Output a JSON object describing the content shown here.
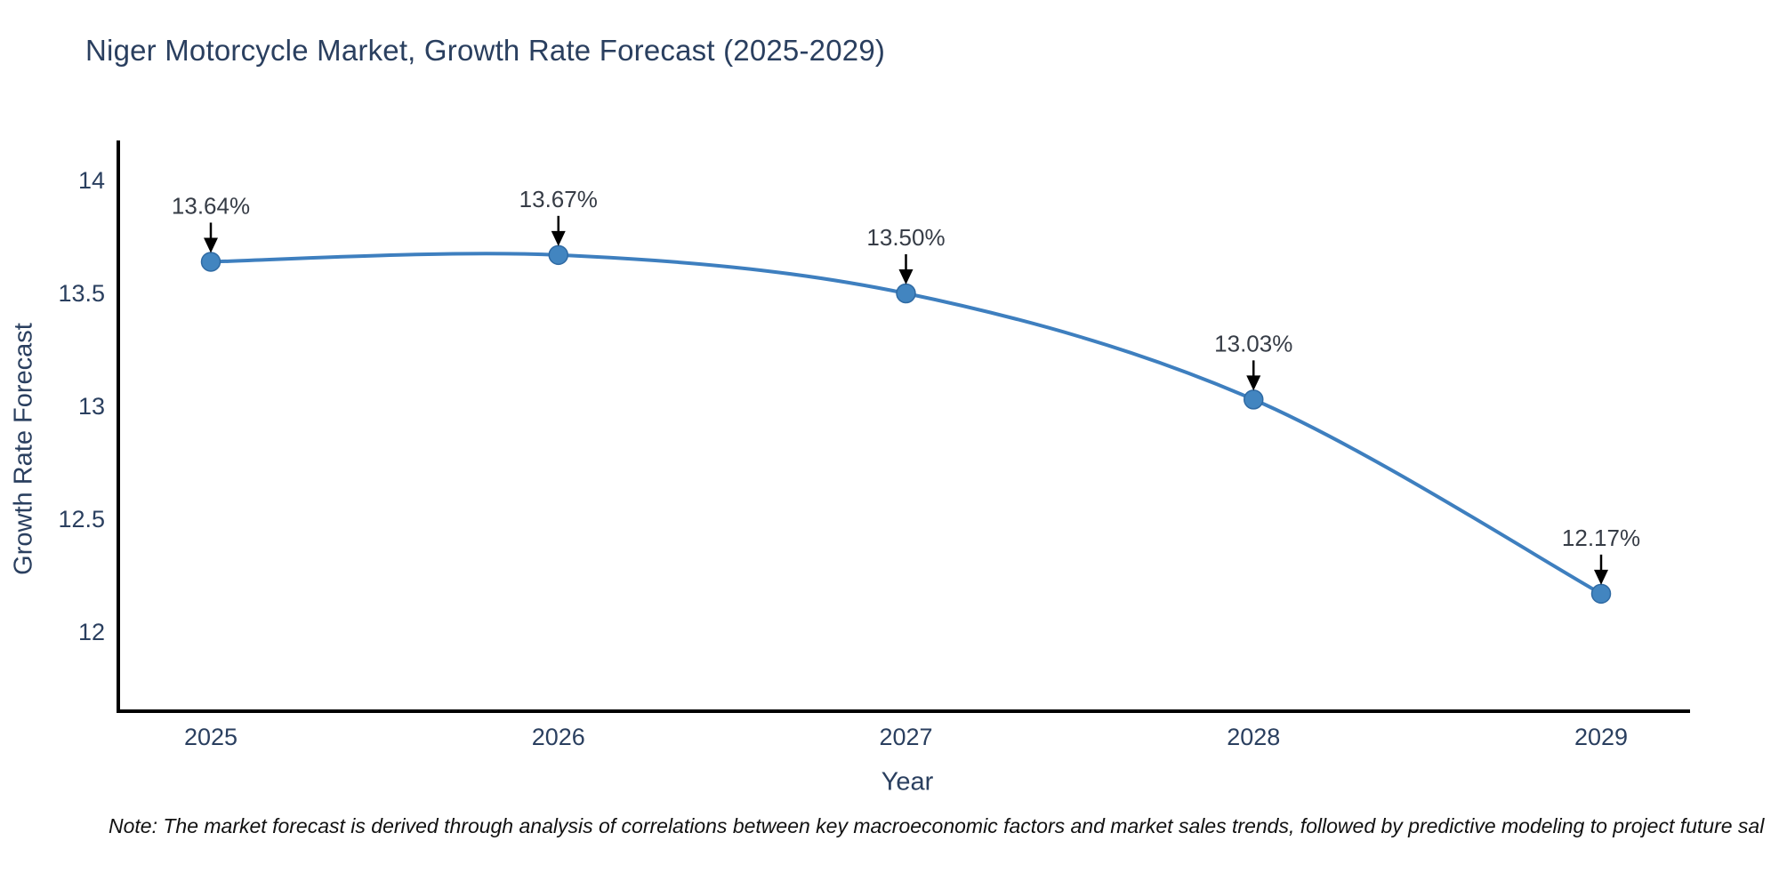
{
  "chart": {
    "title": "Niger Motorcycle Market, Growth Rate Forecast (2025-2029)",
    "note": "Note: The market forecast is derived through analysis of correlations between key macroeconomic factors and market sales trends, followed by predictive modeling to project future sal",
    "colors": {
      "line": "#3e7fbf",
      "marker_fill": "#4285c0",
      "marker_edge": "#2f6aa3",
      "axis": "#000000",
      "tick_text": "#2a3f5f",
      "annotation_text": "#363c46",
      "arrow": "#000000",
      "note_text": "#111111",
      "background": "#ffffff"
    }
  },
  "chart_data": {
    "type": "line",
    "title": "Niger Motorcycle Market, Growth Rate Forecast (2025-2029)",
    "xlabel": "Year",
    "ylabel": "Growth Rate Forecast",
    "x": [
      2025,
      2026,
      2027,
      2028,
      2029
    ],
    "series": [
      {
        "name": "Growth Rate Forecast",
        "values": [
          13.64,
          13.67,
          13.5,
          13.03,
          12.17
        ],
        "point_labels": [
          "13.64%",
          "13.67%",
          "13.50%",
          "13.03%",
          "12.17%"
        ]
      }
    ],
    "yticks": [
      12,
      12.5,
      13,
      13.5,
      14
    ],
    "xticks": [
      "2025",
      "2026",
      "2027",
      "2028",
      "2029"
    ],
    "ylim": [
      11.65,
      14.18
    ],
    "grid": false,
    "legend": false,
    "line_shape": "spline",
    "markers": true,
    "annotations": "each point labeled with its percentage value and a black arrow pointing down to the marker"
  }
}
